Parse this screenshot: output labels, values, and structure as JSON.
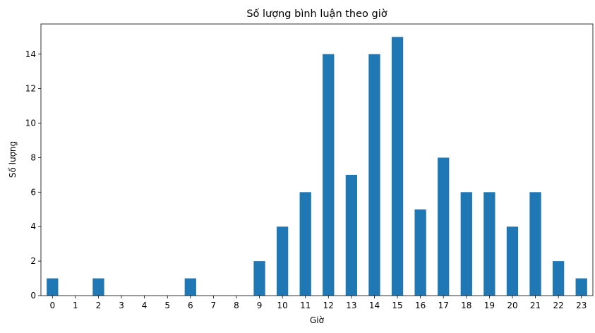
{
  "chart_data": {
    "type": "bar",
    "title": "Số lượng bình luận theo giờ",
    "xlabel": "Giờ",
    "ylabel": "Số lượng",
    "categories": [
      "0",
      "1",
      "2",
      "3",
      "4",
      "5",
      "6",
      "7",
      "8",
      "9",
      "10",
      "11",
      "12",
      "13",
      "14",
      "15",
      "16",
      "17",
      "18",
      "19",
      "20",
      "21",
      "22",
      "23"
    ],
    "values": [
      1,
      0,
      1,
      0,
      0,
      0,
      1,
      0,
      0,
      2,
      4,
      6,
      14,
      7,
      14,
      15,
      5,
      8,
      6,
      6,
      4,
      6,
      2,
      1
    ],
    "ylim": [
      0,
      15.75
    ],
    "yticks": [
      0,
      2,
      4,
      6,
      8,
      10,
      12,
      14
    ],
    "grid": false,
    "bar_color": "#1f77b4"
  }
}
